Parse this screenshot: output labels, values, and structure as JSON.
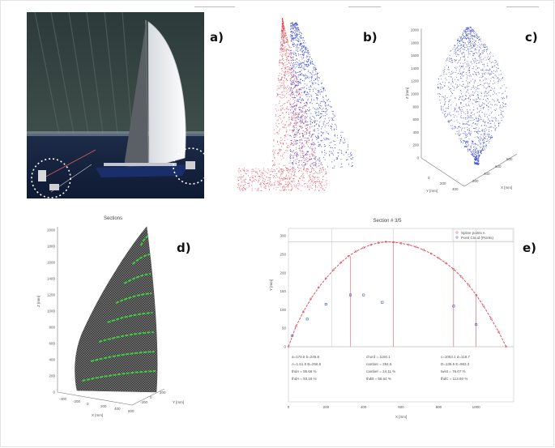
{
  "figure": {
    "labels": {
      "a": "a)",
      "b": "b)",
      "c": "c)",
      "d": "d)",
      "e": "e)"
    },
    "colors": {
      "red_points": "#e0404f",
      "blue_points": "#2a3bd0",
      "green_sections": "#3ecf3e",
      "sail_mesh": "#7a7a7a"
    }
  },
  "panel_c": {
    "z_label": "Z [mm]",
    "y_label": "Y [mm]",
    "x_label": "X [mm]",
    "z_ticks": [
      "2000",
      "1800",
      "1600",
      "1400",
      "1200",
      "1000",
      "800",
      "600",
      "400",
      "200",
      "0"
    ],
    "y_ticks": [
      "0",
      "200",
      "400"
    ],
    "x_ticks": [
      "200",
      "400",
      "600",
      "800"
    ]
  },
  "panel_d": {
    "title": "Sections",
    "z_label": "Z [mm]",
    "x_label": "X [mm]",
    "y_label": "Y [mm]",
    "z_ticks": [
      "2000",
      "1800",
      "1600",
      "1400",
      "1200",
      "1000",
      "800",
      "600",
      "400",
      "200",
      "0"
    ],
    "x_ticks": [
      "-400",
      "-200",
      "0",
      "200",
      "400",
      "600"
    ],
    "y_ticks": [
      "-200",
      "0",
      "200"
    ]
  },
  "panel_e": {
    "title": "Section # 3/5",
    "legend": [
      "Spline points A",
      "Point Cloud (Points)"
    ],
    "ylabel": "Y [mm]",
    "xlabel": "X [mm]",
    "y_ticks": [
      "300",
      "250",
      "200",
      "150",
      "100",
      "50",
      "0"
    ],
    "x_ticks": [
      "0",
      "200",
      "400",
      "600",
      "800",
      "1000"
    ],
    "stats": [
      [
        "a=170.5  b=245.8",
        "A=1.51.5  B=256.5",
        "thdA = 95.68 %",
        "thdA = 93.18 %"
      ],
      [
        "chord = 1160.1",
        "camber = 284.5",
        "camber = 24.11 %",
        "thdB = 56.64 %"
      ],
      [
        "c=1053.1  d=118.7",
        "D=135.5  E=983.3",
        "twist = 76.07 %",
        "thdC = 113.60 %"
      ]
    ],
    "chart_data": {
      "type": "line",
      "title": "Section # 3/5",
      "xlabel": "X [mm]",
      "ylabel": "Y [mm]",
      "xlim": [
        0,
        1200
      ],
      "ylim": [
        0,
        320
      ],
      "series": [
        {
          "name": "Spline points A",
          "x": [
            0,
            40,
            80,
            120,
            160,
            200,
            240,
            280,
            320,
            360,
            400,
            440,
            480,
            520,
            560,
            600,
            640,
            680,
            720,
            760,
            800,
            840,
            880,
            920,
            960,
            1000,
            1040,
            1080,
            1120,
            1160
          ],
          "y": [
            0,
            55,
            95,
            130,
            160,
            185,
            208,
            228,
            245,
            258,
            268,
            276,
            281,
            284,
            283,
            280,
            276,
            270,
            262,
            252,
            240,
            226,
            210,
            190,
            167,
            140,
            110,
            76,
            40,
            0
          ]
        },
        {
          "name": "Point Cloud (Points)",
          "x": [
            20,
            100,
            200,
            330,
            400,
            500,
            880,
            1000
          ],
          "y": [
            30,
            75,
            115,
            140,
            140,
            120,
            110,
            60
          ]
        }
      ]
    }
  }
}
